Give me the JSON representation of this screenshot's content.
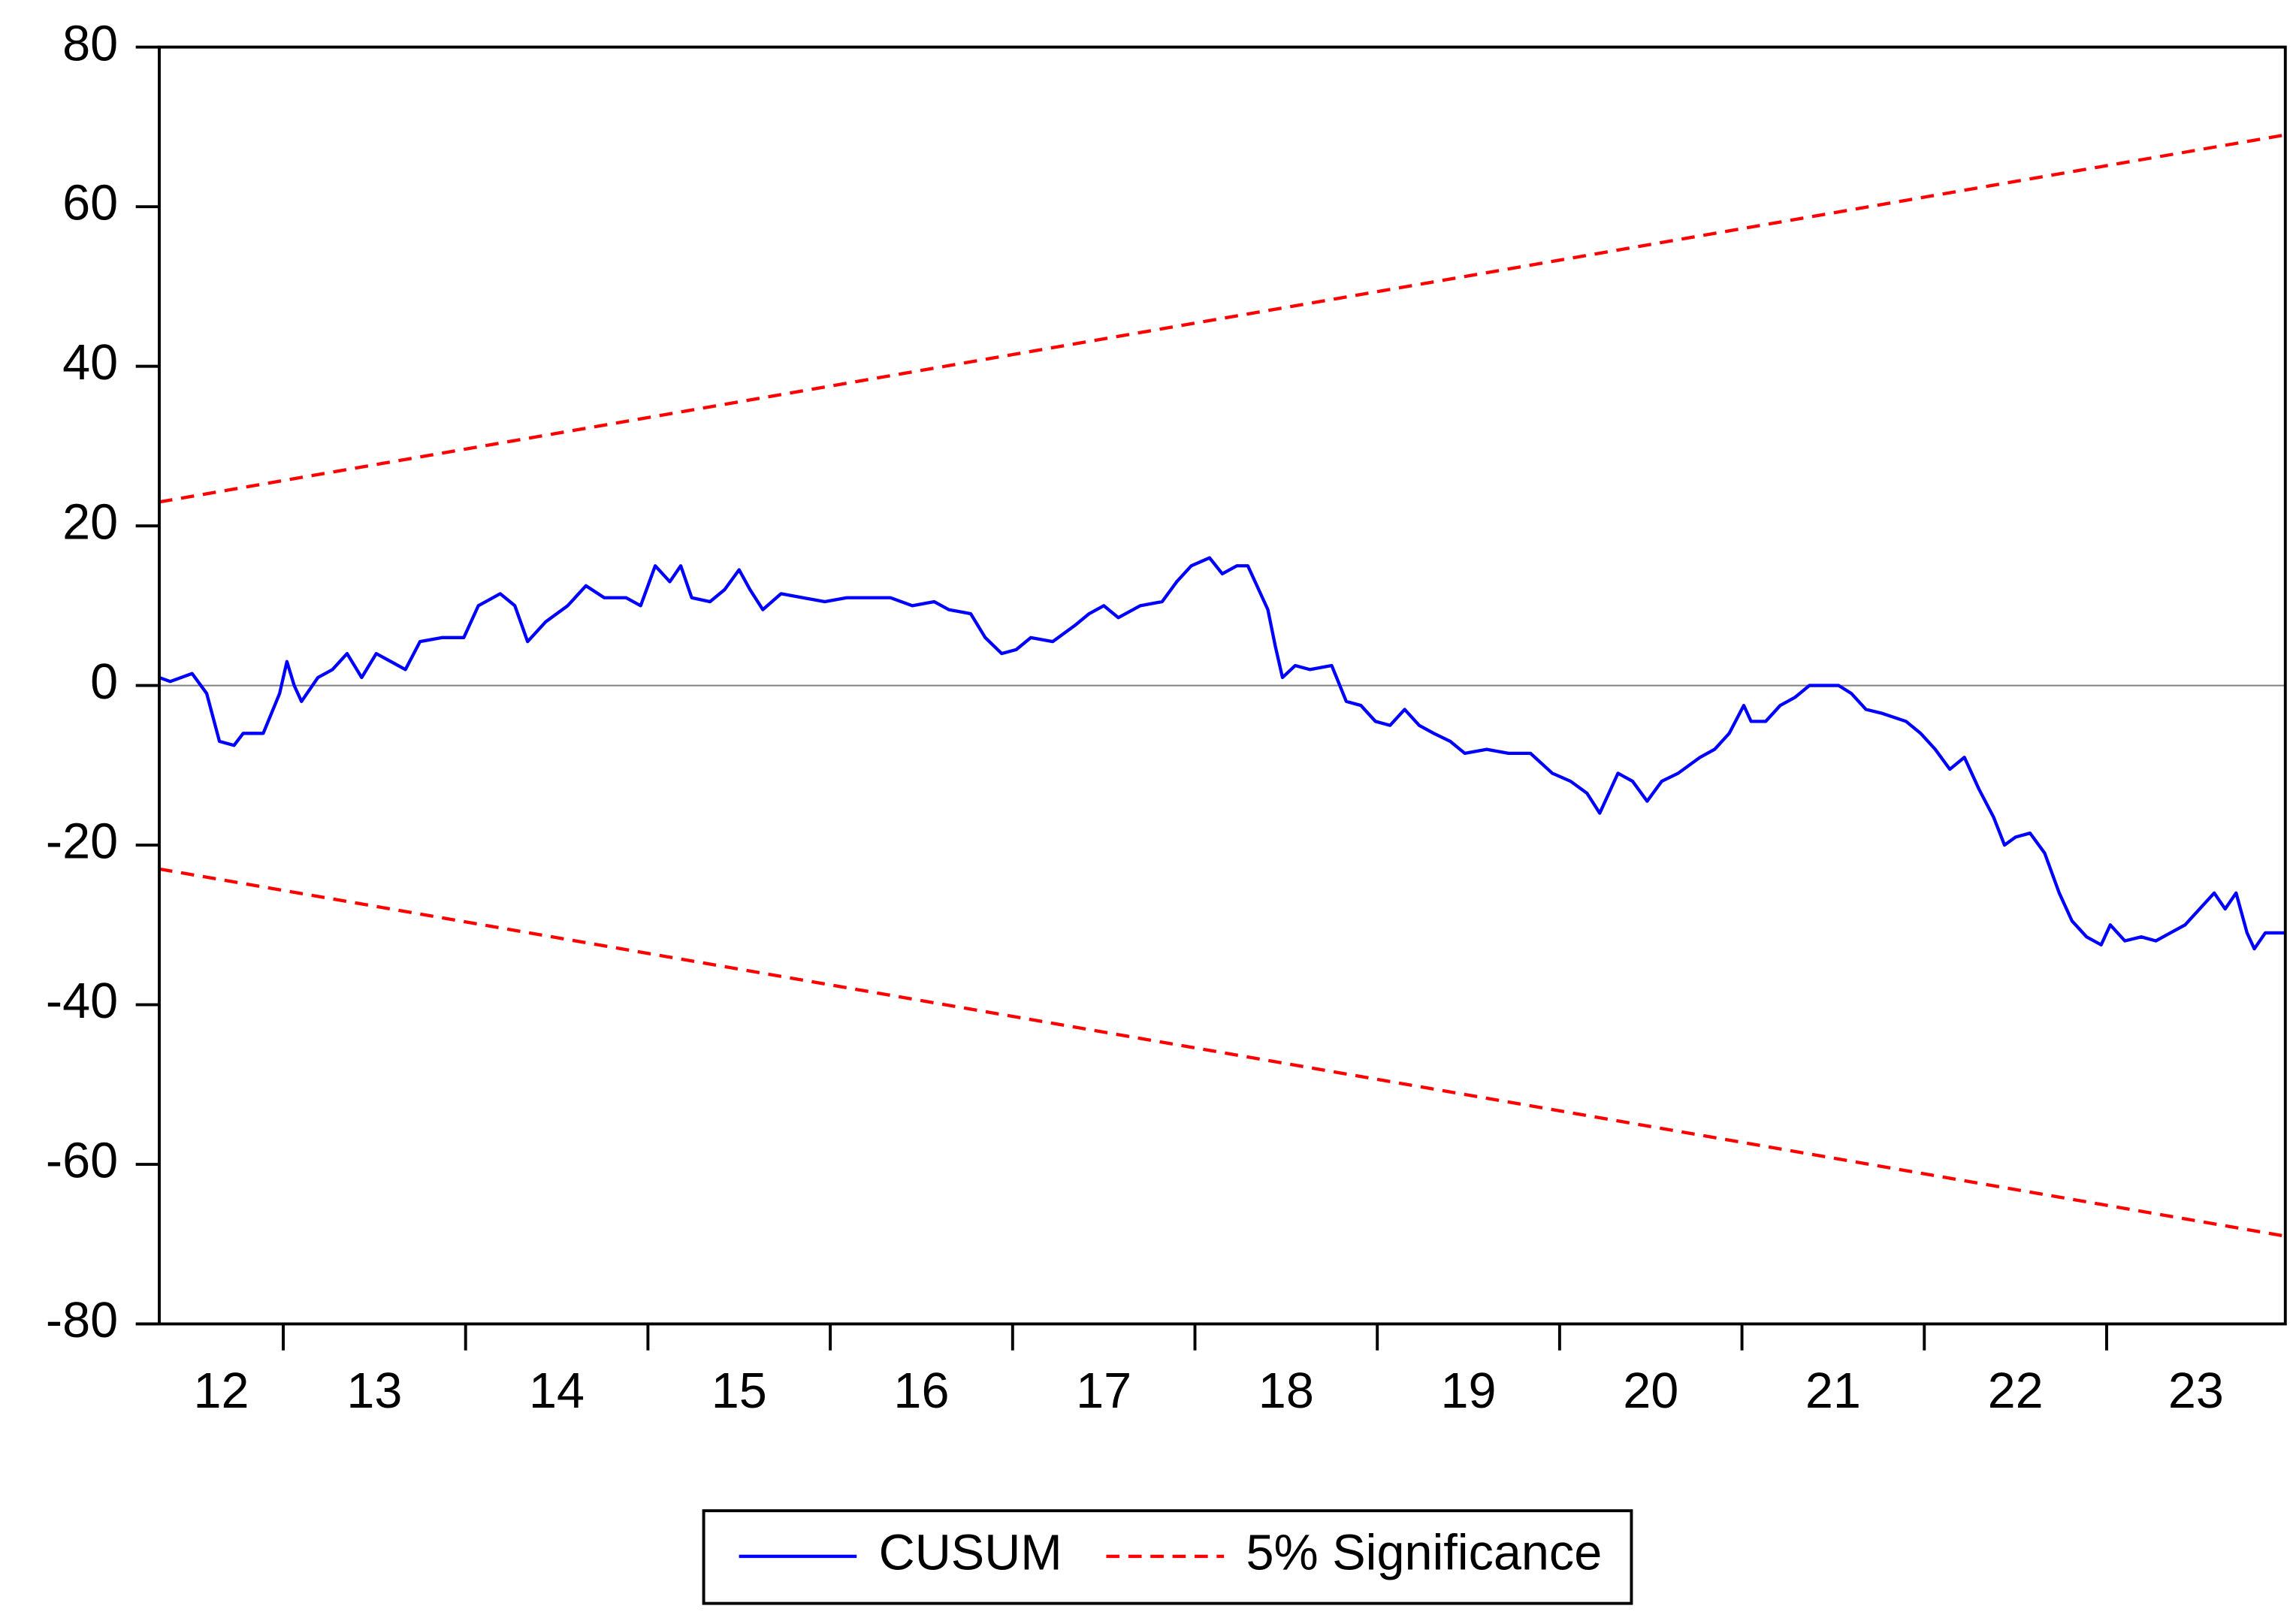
{
  "chart_data": {
    "type": "line",
    "xlim": [
      2012.32,
      2023.98
    ],
    "xticks": [
      {
        "value": 2012,
        "label": "12"
      },
      {
        "value": 2013,
        "label": "13"
      },
      {
        "value": 2014,
        "label": "14"
      },
      {
        "value": 2015,
        "label": "15"
      },
      {
        "value": 2016,
        "label": "16"
      },
      {
        "value": 2017,
        "label": "17"
      },
      {
        "value": 2018,
        "label": "18"
      },
      {
        "value": 2019,
        "label": "19"
      },
      {
        "value": 2020,
        "label": "20"
      },
      {
        "value": 2021,
        "label": "21"
      },
      {
        "value": 2022,
        "label": "22"
      },
      {
        "value": 2023,
        "label": "23"
      }
    ],
    "ylim": [
      -80,
      80
    ],
    "yticks": [
      -80,
      -60,
      -40,
      -20,
      0,
      20,
      40,
      60,
      80
    ],
    "legend": "bottom",
    "series": [
      {
        "name": "CUSUM",
        "color": "#0000ff",
        "dash": false,
        "x": [
          2012.32,
          2012.38,
          2012.5,
          2012.58,
          2012.65,
          2012.73,
          2012.78,
          2012.89,
          2012.98,
          2013.02,
          2013.06,
          2013.1,
          2013.19,
          2013.27,
          2013.35,
          2013.43,
          2013.51,
          2013.59,
          2013.67,
          2013.75,
          2013.87,
          2013.99,
          2014.07,
          2014.19,
          2014.27,
          2014.34,
          2014.44,
          2014.56,
          2014.66,
          2014.76,
          2014.88,
          2014.96,
          2015.04,
          2015.12,
          2015.18,
          2015.24,
          2015.34,
          2015.42,
          2015.5,
          2015.56,
          2015.63,
          2015.73,
          2015.85,
          2015.97,
          2016.09,
          2016.21,
          2016.33,
          2016.45,
          2016.57,
          2016.65,
          2016.77,
          2016.85,
          2016.94,
          2017.02,
          2017.1,
          2017.22,
          2017.34,
          2017.42,
          2017.5,
          2017.58,
          2017.7,
          2017.82,
          2017.9,
          2017.98,
          2018.08,
          2018.15,
          2018.23,
          2018.29,
          2018.35,
          2018.4,
          2018.44,
          2018.48,
          2018.55,
          2018.63,
          2018.75,
          2018.83,
          2018.91,
          2018.99,
          2019.07,
          2019.15,
          2019.23,
          2019.31,
          2019.4,
          2019.48,
          2019.6,
          2019.72,
          2019.84,
          2019.96,
          2020.06,
          2020.15,
          2020.22,
          2020.27,
          2020.32,
          2020.4,
          2020.48,
          2020.56,
          2020.65,
          2020.77,
          2020.85,
          2020.93,
          2021.01,
          2021.05,
          2021.13,
          2021.21,
          2021.29,
          2021.37,
          2021.45,
          2021.53,
          2021.6,
          2021.68,
          2021.77,
          2021.9,
          2021.98,
          2022.06,
          2022.14,
          2022.22,
          2022.3,
          2022.38,
          2022.44,
          2022.5,
          2022.58,
          2022.66,
          2022.74,
          2022.81,
          2022.89,
          2022.97,
          2023.02,
          2023.1,
          2023.19,
          2023.27,
          2023.35,
          2023.43,
          2023.51,
          2023.59,
          2023.65,
          2023.71,
          2023.77,
          2023.81,
          2023.87,
          2023.98
        ],
        "values": [
          1,
          0.5,
          1.5,
          -1,
          -7,
          -7.5,
          -6,
          -6,
          -1,
          3,
          0,
          -2,
          1,
          2,
          4,
          1,
          4,
          3,
          2,
          5.5,
          6,
          6,
          10,
          11.5,
          10,
          5.5,
          8,
          10,
          12.5,
          11,
          11,
          10,
          15,
          13,
          15,
          11,
          10.5,
          12,
          14.5,
          12,
          9.5,
          11.5,
          11,
          10.5,
          11,
          11,
          11,
          10,
          10.5,
          9.5,
          9,
          6,
          4,
          4.5,
          6,
          5.5,
          7.5,
          9,
          10,
          8.5,
          10,
          10.5,
          13,
          15,
          16,
          14,
          15,
          15,
          12,
          9.5,
          5,
          1,
          2.5,
          2,
          2.5,
          -2,
          -2.5,
          -4.5,
          -5,
          -3,
          -5,
          -6,
          -7,
          -8.5,
          -8,
          -8.5,
          -8.5,
          -11,
          -12,
          -13.5,
          -16,
          -13.5,
          -11,
          -12,
          -14.5,
          -12,
          -11,
          -9,
          -8,
          -6,
          -2.5,
          -4.5,
          -4.5,
          -2.5,
          -1.5,
          0,
          0,
          0,
          -1,
          -3,
          -3.5,
          -4.5,
          -6,
          -8,
          -10.5,
          -9,
          -13,
          -16.5,
          -20,
          -19,
          -18.5,
          -21,
          -26,
          -29.5,
          -31.5,
          -32.5,
          -30,
          -32,
          -31.5,
          -32,
          -31,
          -30,
          -28,
          -26,
          -28,
          -26,
          -31,
          -33,
          -31,
          -31
        ]
      },
      {
        "name": "5% Significance",
        "color": "#ff0000",
        "dash": true,
        "x": [
          2012.32,
          2023.98
        ],
        "values": [
          23,
          69
        ]
      },
      {
        "color": "#ff0000",
        "dash": true,
        "x": [
          2012.32,
          2023.98
        ],
        "values": [
          -23,
          -69
        ]
      }
    ]
  }
}
